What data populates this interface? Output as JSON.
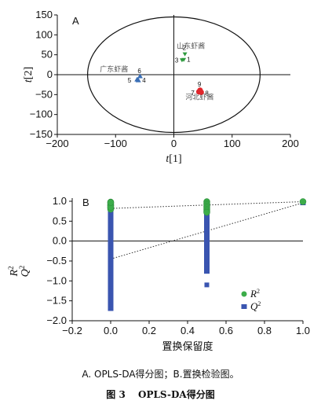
{
  "chart_data": [
    {
      "type": "scatter",
      "panel": "A",
      "xlabel": "t[1]",
      "ylabel": "t[2]",
      "xlim": [
        -200,
        200
      ],
      "ylim": [
        -150,
        150
      ],
      "xticks": [
        "−200",
        "−100",
        "0",
        "100",
        "200"
      ],
      "yticks": [
        "150",
        "100",
        "50",
        "0",
        "−50",
        "−100",
        "−150"
      ],
      "ellipse": {
        "center": [
          0,
          0
        ],
        "rx": 148,
        "ry": 145
      },
      "groups": [
        {
          "name": "山东虾酱",
          "color": "#2e9a3e",
          "points": [
            {
              "x": 17,
              "y": 38,
              "label": "1"
            },
            {
              "x": 19,
              "y": 52,
              "label": "2"
            },
            {
              "x": 14,
              "y": 37,
              "label": "3"
            }
          ]
        },
        {
          "name": "广东虾酱",
          "color": "#3a6fb6",
          "points": [
            {
              "x": -61,
              "y": -14,
              "label": "4"
            },
            {
              "x": -63,
              "y": -12,
              "label": "5"
            },
            {
              "x": -58,
              "y": -4,
              "label": "6"
            }
          ]
        },
        {
          "name": "河北虾酱",
          "color": "#e0262b",
          "points": [
            {
              "x": 43,
              "y": -43,
              "label": "7"
            },
            {
              "x": 47,
              "y": -44,
              "label": "8"
            },
            {
              "x": 45,
              "y": -39,
              "label": "9"
            }
          ]
        }
      ]
    },
    {
      "type": "scatter",
      "panel": "B",
      "xlabel": "置换保留度",
      "ylabel_r": "R",
      "ylabel_q": "Q",
      "sup": "2",
      "xlim": [
        -0.2,
        1.0
      ],
      "ylim": [
        -2.0,
        1.0
      ],
      "xticks": [
        "−0.2",
        "0.0",
        "0.2",
        "0.4",
        "0.6",
        "0.8",
        "1.0"
      ],
      "yticks": [
        "1.0",
        "0.5",
        "0.0",
        "−0.5",
        "−1.0",
        "−1.5",
        "−2.0"
      ],
      "legend_position": "lower-right",
      "series": [
        {
          "name": "R",
          "sup": "2",
          "marker": "circle",
          "color": "#3cad4a",
          "x": [
            0,
            0,
            0,
            0,
            0,
            0,
            0,
            0,
            0,
            0,
            0.5,
            0.5,
            0.5,
            0.5,
            0.5,
            0.5,
            0.5,
            0.5,
            1.0
          ],
          "y": [
            0.98,
            0.95,
            0.92,
            0.89,
            0.86,
            0.83,
            0.8,
            0.9,
            0.85,
            0.97,
            0.99,
            0.95,
            0.91,
            0.87,
            0.83,
            0.79,
            0.75,
            0.72,
            0.99
          ]
        },
        {
          "name": "Q",
          "sup": "2",
          "marker": "square",
          "color": "#3a55b0",
          "x_groups": [
            0,
            0.5,
            1.0
          ],
          "y_ranges": [
            [
              -1.7,
              0.78
            ],
            [
              -0.8,
              0.68
            ],
            [
              0.96,
              0.96
            ]
          ],
          "extra": [
            {
              "x": 0.5,
              "y": -1.1
            }
          ]
        }
      ],
      "regression_lines": [
        {
          "series": "R",
          "from": [
            0,
            0.82
          ],
          "to": [
            1.0,
            0.99
          ]
        },
        {
          "series": "Q",
          "from": [
            0,
            -0.45
          ],
          "to": [
            1.0,
            0.96
          ]
        }
      ]
    }
  ],
  "caption": {
    "line1": "A. OPLS-DA得分图；B.置换检验图。",
    "fig_no": "图 3",
    "fig_title": "OPLS-DA得分图"
  }
}
